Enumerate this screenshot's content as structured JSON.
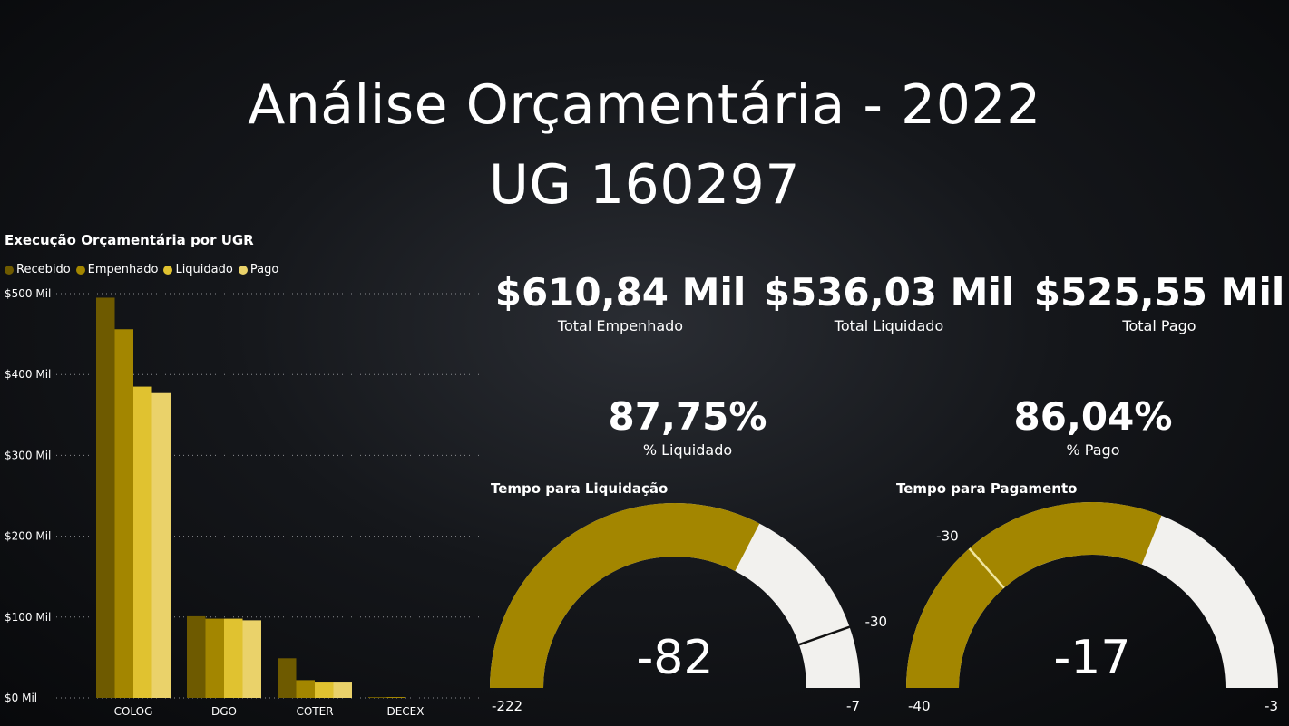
{
  "header": {
    "title_line1": "Análise Orçamentária - 2022",
    "title_line2": "UG 160297"
  },
  "colors": {
    "recebido": "#6e5a00",
    "empenhado": "#a38600",
    "liquidado": "#e0c230",
    "pago": "#ead26a",
    "gauge_fill": "#a38600",
    "gauge_track": "#f2f1ee"
  },
  "chart_data": [
    {
      "type": "bar",
      "title": "Execução Orçamentária por UGR",
      "categories": [
        "COLOG",
        "DGO",
        "COTER",
        "DECEX"
      ],
      "series": [
        {
          "name": "Recebido",
          "values": [
            495,
            101,
            49,
            1
          ]
        },
        {
          "name": "Empenhado",
          "values": [
            456,
            98,
            22,
            1
          ]
        },
        {
          "name": "Liquidado",
          "values": [
            385,
            98,
            19,
            0
          ]
        },
        {
          "name": "Pago",
          "values": [
            377,
            96,
            19,
            0
          ]
        }
      ],
      "ylim": [
        0,
        500
      ],
      "yticks": [
        0,
        100,
        200,
        300,
        400,
        500
      ],
      "ytick_labels": [
        "$0 Mil",
        "$100 Mil",
        "$200 Mil",
        "$300 Mil",
        "$400 Mil",
        "$500 Mil"
      ],
      "grid": true,
      "legend_position": "top-left"
    }
  ],
  "kpis": {
    "empenhado": {
      "value": "$610,84 Mil",
      "label": "Total Empenhado"
    },
    "liquidado": {
      "value": "$536,03 Mil",
      "label": "Total Liquidado"
    },
    "pago": {
      "value": "$525,55 Mil",
      "label": "Total Pago"
    },
    "pct_liquidado": {
      "value": "87,75%",
      "label": "% Liquidado"
    },
    "pct_pago": {
      "value": "86,04%",
      "label": "% Pago"
    }
  },
  "gauges": [
    {
      "title": "Tempo para Liquidação",
      "value": -82,
      "value_label": "-82",
      "min": -222,
      "max": -7,
      "min_label": "-222",
      "max_label": "-7",
      "target": -30,
      "target_label": "-30",
      "fill_end": -82
    },
    {
      "title": "Tempo para Pagamento",
      "value": -17,
      "value_label": "-17",
      "min": -40,
      "max": -3,
      "min_label": "-40",
      "max_label": "-3",
      "target": -30,
      "target_label": "-30",
      "fill_end": -17
    }
  ]
}
